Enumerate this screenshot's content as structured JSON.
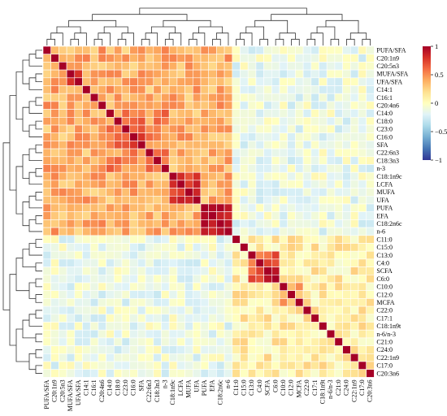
{
  "chart_data": {
    "type": "heatmap",
    "title": "",
    "variables": [
      "PUFA/SFA",
      "C20:1n9",
      "C20:5n3",
      "MUFA/SFA",
      "UFA/SFA",
      "C14:1",
      "C16:1",
      "C20:4n6",
      "C14:0",
      "C18:0",
      "C23:0",
      "C16:0",
      "SFA",
      "C22:6n3",
      "C18:3n3",
      "n-3",
      "C18:1n9c",
      "LCFA",
      "MUFA",
      "UFA",
      "PUFA",
      "EFA",
      "C18:2n6c",
      "n-6",
      "C11:0",
      "C15:0",
      "C13:0",
      "C4:0",
      "SCFA",
      "C6:0",
      "C10:0",
      "C12:0",
      "MCFA",
      "C22:0",
      "C17:1",
      "C18:1n9t",
      "n-6/n-3",
      "C21:0",
      "C24:0",
      "C22:1n9",
      "C17:0",
      "C20:3n6"
    ],
    "row_labels": [
      "PUFA/SFA",
      "C20:1n9",
      "C20:5n3",
      "MUFA/SFA",
      "UFA/SFA",
      "C14:1",
      "C16:1",
      "C20:4n6",
      "C14:0",
      "C18:0",
      "C23:0",
      "C16:0",
      "SFA",
      "C22:6n3",
      "C18:3n3",
      "n-3",
      "C18:1n9c",
      "LCFA",
      "MUFA",
      "UFA",
      "PUFA",
      "EFA",
      "C18:2n6c",
      "n-6",
      "C11:0",
      "C15:0",
      "C13:0",
      "C4:0",
      "SCFA",
      "C6:0",
      "C10:0",
      "C12:0",
      "MCFA",
      "C22:0",
      "C17:1",
      "C18:1n9t",
      "n-6/n-3",
      "C21:0",
      "C24:0",
      "C22:1n9",
      "C17:0",
      "C20:3n6"
    ],
    "column_labels": [
      "PUFA/SFA",
      "C20:1n9",
      "C20:5n3",
      "MUFA/SFA",
      "UFA/SFA",
      "C14:1",
      "C16:1",
      "C20:4n6",
      "C14:0",
      "C18:0",
      "C23:0",
      "C16:0",
      "SFA",
      "C22:6n3",
      "C18:3n3",
      "n-3",
      "C18:1n9c",
      "LCFA",
      "MUFA",
      "UFA",
      "PUFA",
      "EFA",
      "C18:2n6c",
      "n-6",
      "C11:0",
      "C15:0",
      "C13:0",
      "C4:0",
      "SCFA",
      "C6:0",
      "C10:0",
      "C12:0",
      "MCFA",
      "C22:0",
      "C17:1",
      "C18:1n9t",
      "n-6/n-3",
      "C21:0",
      "C24:0",
      "C22:1n9",
      "C17:0",
      "C20:3n6"
    ],
    "groups": [
      {
        "start": 0,
        "end": 23,
        "within": 0.38
      },
      {
        "start": 24,
        "end": 41,
        "within": 0.1
      }
    ],
    "blocks": [
      {
        "start": 3,
        "end": 4,
        "value": 0.85
      },
      {
        "start": 8,
        "end": 15,
        "value": 0.5
      },
      {
        "start": 9,
        "end": 12,
        "value": 0.65
      },
      {
        "start": 16,
        "end": 19,
        "value": 0.82
      },
      {
        "start": 20,
        "end": 23,
        "value": 0.85
      },
      {
        "start": 26,
        "end": 29,
        "value": 0.68
      },
      {
        "start": 27,
        "end": 29,
        "value": 0.85
      },
      {
        "start": 30,
        "end": 32,
        "value": 0.45
      }
    ],
    "between_groups": -0.12,
    "colorbar": {
      "min": -1,
      "max": 1,
      "ticks": [
        1,
        0.5,
        0,
        -0.5,
        -1
      ],
      "tick_labels": [
        "1",
        "0.5",
        "0",
        "−0.5",
        "−1"
      ],
      "colors": [
        "#313695",
        "#4575b4",
        "#74add1",
        "#abd9e9",
        "#e0f3f8",
        "#ffffbf",
        "#fee090",
        "#fdae61",
        "#f46d43",
        "#d73027",
        "#a50026"
      ]
    },
    "dendrogram": {
      "top": true,
      "left": true
    },
    "diagonal": 1
  }
}
